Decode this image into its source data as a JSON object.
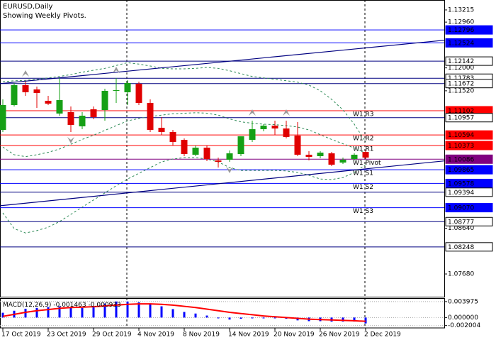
{
  "chart_data": [
    {
      "type": "candlestick",
      "title": "EURUSD,Daily",
      "subtitle": "Showing Weekly Pivots.",
      "categories": [
        "17 Oct 2019",
        null,
        null,
        null,
        "23 Oct 2019",
        null,
        null,
        null,
        "29 Oct 2019",
        null,
        null,
        null,
        "4 Nov 2019",
        null,
        null,
        null,
        "8 Nov 2019",
        null,
        null,
        null,
        "14 Nov 2019",
        null,
        null,
        null,
        "20 Nov 2019",
        null,
        null,
        null,
        "26 Nov 2019",
        null,
        null,
        null,
        "2 Dec 2019"
      ],
      "open": [
        1.107,
        1.11221,
        1.11638,
        1.11548,
        1.1131,
        1.11043,
        1.11072,
        1.10775,
        1.11132,
        1.11117,
        1.11519,
        1.11489,
        1.11668,
        1.11266,
        1.10745,
        1.10656,
        1.10492,
        1.1018,
        1.10328,
        1.1006,
        1.10075,
        1.10194,
        1.10492,
        1.10715,
        1.1079,
        1.1073,
        1.10581,
        1.1018,
        1.1015,
        1.10209,
        1.10016,
        1.1009,
        1.10239
      ],
      "high": [
        1.1134,
        1.11682,
        1.11712,
        1.11608,
        1.11415,
        1.11787,
        1.11191,
        1.11072,
        1.11191,
        1.11563,
        1.11787,
        1.11742,
        1.11712,
        1.1134,
        1.10968,
        1.107,
        1.10522,
        1.10373,
        1.10373,
        1.1012,
        1.10269,
        1.10566,
        1.10894,
        1.10819,
        1.10894,
        1.10894,
        1.10864,
        1.10254,
        1.10254,
        1.10239,
        1.1012,
        1.10209,
        1.10269
      ],
      "low": [
        1.10656,
        1.11191,
        1.11415,
        1.11162,
        1.11221,
        1.10998,
        1.10656,
        1.10715,
        1.10924,
        1.10894,
        1.11266,
        1.11221,
        1.11221,
        1.10656,
        1.10596,
        1.10373,
        1.1015,
        1.1015,
        1.10046,
        1.09912,
        1.10031,
        1.1015,
        1.10447,
        1.10671,
        1.10596,
        1.10522,
        1.1015,
        1.1006,
        1.10105,
        1.09941,
        1.09986,
        1.1006,
        1.1009
      ],
      "close": [
        1.11221,
        1.11638,
        1.11489,
        1.11474,
        1.11251,
        1.11325,
        1.10804,
        1.10998,
        1.10968,
        1.11519,
        1.11534,
        1.11682,
        1.11266,
        1.107,
        1.10656,
        1.10447,
        1.10194,
        1.10328,
        1.1009,
        1.10031,
        1.10209,
        1.10566,
        1.10715,
        1.1079,
        1.1073,
        1.10552,
        1.1018,
        1.10135,
        1.10224,
        1.09971,
        1.10075,
        1.1018,
        1.1012
      ],
      "up_color": "#16a016",
      "down_color": "#e00000",
      "bands": {
        "color": "#2e8b57",
        "upper": {
          "values": [
            1.1171,
            1.1173,
            1.1174,
            1.1176,
            1.1179,
            1.1182,
            1.1186,
            1.1191,
            1.1195,
            1.1199,
            1.1205,
            1.1211,
            1.1208,
            1.1204,
            1.1199,
            1.1198,
            1.1198,
            1.1199,
            1.1201,
            1.1199,
            1.1194,
            1.1188,
            1.1182,
            1.1179,
            1.1176,
            1.1173,
            1.117,
            1.1164,
            1.1152,
            1.1134,
            1.1112,
            1.1082,
            1.1045
          ]
        },
        "middle": {
          "values": [
            1.1034,
            1.1018,
            1.1014,
            1.1018,
            1.1023,
            1.103,
            1.104,
            1.105,
            1.1059,
            1.1069,
            1.1079,
            1.1089,
            1.1094,
            1.1098,
            1.1101,
            1.1104,
            1.1105,
            1.1106,
            1.1105,
            1.1101,
            1.1093,
            1.1087,
            1.1084,
            1.1082,
            1.1081,
            1.1079,
            1.1076,
            1.107,
            1.106,
            1.105,
            1.1041,
            1.1032,
            1.1021
          ]
        },
        "lower": {
          "values": [
            1.0896,
            1.0863,
            1.0854,
            1.0859,
            1.0866,
            1.0878,
            1.0893,
            1.0908,
            1.0923,
            1.0938,
            1.0953,
            1.0967,
            1.0979,
            1.0991,
            1.1003,
            1.1009,
            1.1012,
            1.1012,
            1.1009,
            1.1003,
            1.0991,
            1.0985,
            1.0985,
            1.0985,
            1.0985,
            1.0984,
            1.0981,
            1.0975,
            1.0967,
            1.0966,
            1.097,
            1.0981,
            1.0997
          ]
        }
      },
      "trendlines": [
        {
          "color": "#000080",
          "values": [
            1.1167,
            1.1258
          ]
        },
        {
          "color": "#000080",
          "values": [
            1.0911,
            1.1005
          ]
        }
      ],
      "fractals": {
        "color": "#9a9a9a",
        "up": [
          2,
          10,
          22,
          25
        ],
        "down": [
          6,
          20
        ]
      },
      "levels": [
        {
          "value": 1.12796,
          "color": "#0000ff",
          "filled": true
        },
        {
          "value": 1.12524,
          "color": "#0000ff",
          "filled": true
        },
        {
          "value": 1.12142,
          "color": "#000080",
          "filled": false
        },
        {
          "value": 1.11783,
          "color": "#000080",
          "filled": false
        },
        {
          "value": 1.11672,
          "color": "#000080",
          "filled": false
        },
        {
          "value": 1.11102,
          "color": "#ff0000",
          "filled": true,
          "name": "W1 R3"
        },
        {
          "value": 1.10957,
          "color": "#000080",
          "filled": false
        },
        {
          "value": 1.10594,
          "color": "#ff0000",
          "filled": true,
          "name": "W1 R2"
        },
        {
          "value": 1.10373,
          "color": "#ff0000",
          "filled": true,
          "name": "W1 R1"
        },
        {
          "value": 1.10086,
          "color": "#800080",
          "filled": true,
          "name": "W1 Pivot"
        },
        {
          "value": 1.09865,
          "color": "#0000ff",
          "filled": true,
          "name": "W1 S1"
        },
        {
          "value": 1.09578,
          "color": "#0000ff",
          "filled": true,
          "name": "W1 S2"
        },
        {
          "value": 1.09394,
          "color": "#000080",
          "filled": false
        },
        {
          "value": 1.0907,
          "label": "1.09070",
          "color": "#0000ff",
          "filled": true,
          "name": "W1 S3"
        },
        {
          "value": 1.08777,
          "color": "#000080",
          "filled": false
        },
        {
          "value": 1.08248,
          "color": "#000080",
          "filled": false
        }
      ],
      "ylim": [
        1.07204,
        1.13423
      ],
      "yticks": [
        1.13215,
        {
          "value": 1.1296,
          "label": "1.12960"
        },
        {
          "value": 1.12,
          "label": "1.12000"
        },
        {
          "value": 1.1152,
          "label": "1.11520"
        },
        {
          "value": 1.0864,
          "label": "1.08640"
        },
        {
          "value": 1.0768,
          "label": "1.07680"
        }
      ]
    },
    {
      "type": "macd",
      "title": "MACD(12,26,9)",
      "histogram": {
        "color": "#0000ff",
        "values": [
          0.0012,
          0.0017,
          0.0022,
          0.0024,
          0.0026,
          0.0028,
          0.0026,
          0.0024,
          0.0028,
          0.0035,
          0.004,
          0.004,
          0.0038,
          0.0033,
          0.0028,
          0.0021,
          0.0014,
          0.001,
          0.0005,
          -0.0002,
          -0.0005,
          -0.0003,
          -0.0002,
          -0.0002,
          -0.0002,
          -0.0003,
          -0.0007,
          -0.0009,
          -0.0009,
          -0.001,
          -0.001,
          -0.001,
          -0.001463
        ]
      },
      "signal": {
        "color": "#ff0000",
        "values": [
          0.0003,
          0.0008,
          0.0013,
          0.0017,
          0.002,
          0.0023,
          0.0025,
          0.0026,
          0.0027,
          0.0029,
          0.0031,
          0.0033,
          0.0034,
          0.0034,
          0.0033,
          0.0031,
          0.0028,
          0.0025,
          0.0021,
          0.0017,
          0.0013,
          0.001,
          0.0007,
          0.0004,
          0.0002,
          0,
          -0.0002,
          -0.0004,
          -0.0005,
          -0.0006,
          -0.0007,
          -0.0008,
          -0.000933
        ]
      },
      "ylim": [
        -0.00259,
        0.00467
      ],
      "yticks": [
        0.003975,
        {
          "value": 0,
          "label": "0.000000"
        },
        -0.002004
      ]
    }
  ]
}
